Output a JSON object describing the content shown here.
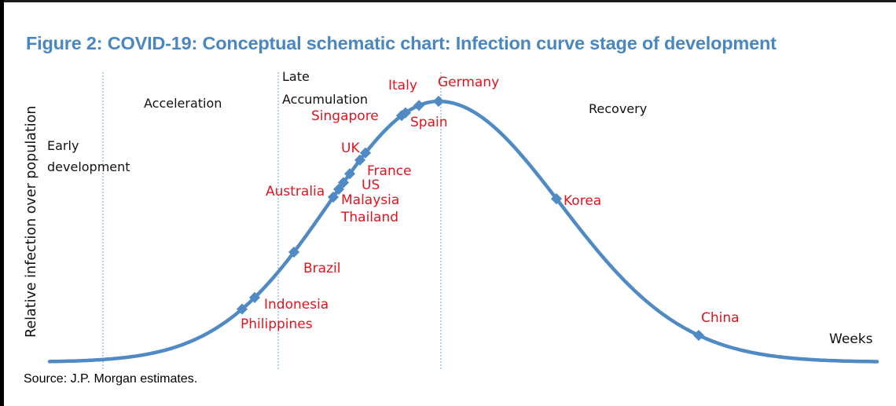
{
  "title": "Figure 2: COVID-19: Conceptual schematic chart: Infection curve stage of development",
  "source": "Source: J.P. Morgan estimates.",
  "colors": {
    "title": "#4a86c0",
    "curve": "#4f8ac4",
    "country_label": "#e0141e",
    "divider": "#6f9fd0"
  },
  "chart_data": {
    "type": "line",
    "xlabel": "Weeks",
    "ylabel": "Relative infection over population",
    "stages": [
      {
        "lines": [
          "Early",
          "development"
        ]
      },
      {
        "lines": [
          "Acceleration"
        ]
      },
      {
        "lines": [
          "Late",
          "Accumulation"
        ]
      },
      {
        "lines": [
          "Recovery"
        ]
      }
    ],
    "curve": {
      "shape": "bell",
      "note": "conceptual schematic, no numeric axes"
    },
    "countries": [
      {
        "name": "Philippines"
      },
      {
        "name": "Indonesia"
      },
      {
        "name": "Brazil"
      },
      {
        "name": "Thailand"
      },
      {
        "name": "Malaysia"
      },
      {
        "name": "Australia"
      },
      {
        "name": "US"
      },
      {
        "name": "France"
      },
      {
        "name": "UK"
      },
      {
        "name": "Singapore"
      },
      {
        "name": "Spain"
      },
      {
        "name": "Italy"
      },
      {
        "name": "Germany"
      },
      {
        "name": "Korea"
      },
      {
        "name": "China"
      }
    ]
  }
}
